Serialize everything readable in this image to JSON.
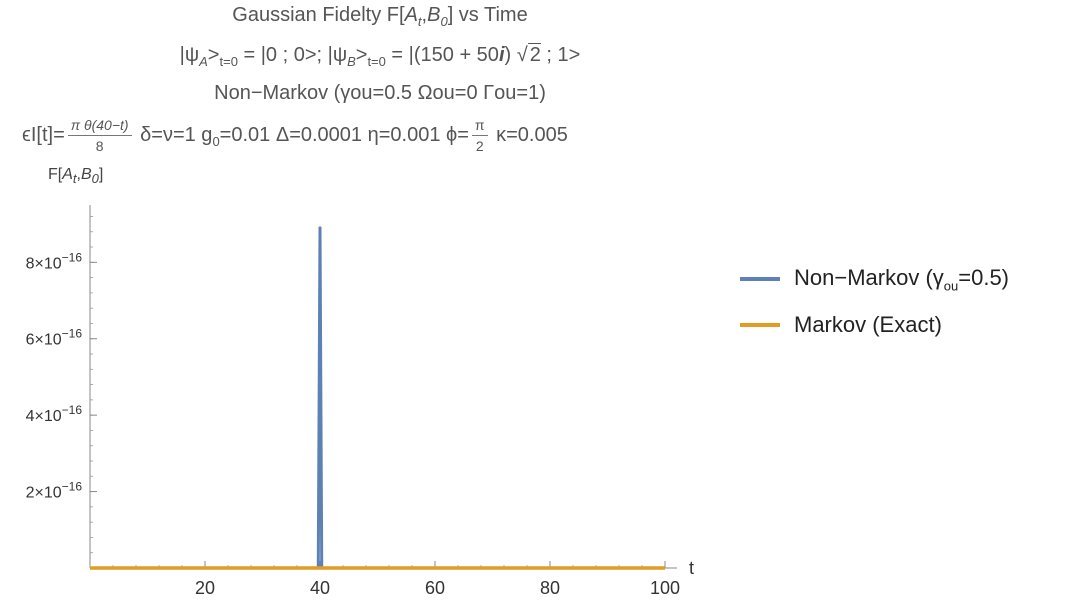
{
  "header": {
    "line1_prefix": "Gaussian Fidelty F[",
    "line1_suffix": "] vs Time",
    "line2_a": "|ψ",
    "line2_b": "A",
    "line2_c": ">",
    "line2_d": "t=0",
    "line2_e": " = |0 ; 0>; |ψ",
    "line2_f": "B",
    "line2_g": ">",
    "line2_h": "t=0",
    "line2_i": " = |(150 + 50",
    "line2_j": "i",
    "line2_k": ") √",
    "line2_l": "2",
    "line2_m": "  ; 1>",
    "line3": "Non−Markov (γou=0.5  Ωou=0 Γou=1)",
    "line4_a": "ϵI[t]=",
    "line4_num": "π θ(40−t)",
    "line4_den": "8",
    "line4_b": " δ=ν=1 g",
    "line4_b_sub": "0",
    "line4_c": "=0.01 Δ=0.0001 η=0.001 ϕ=",
    "line4_num2": "π",
    "line4_den2": "2",
    "line4_d": " κ=0.005"
  },
  "chart_data": {
    "type": "line",
    "xlabel": "t",
    "ylabel": "F[A_t,B_0]",
    "xlim": [
      0,
      100
    ],
    "ylim": [
      0,
      9.5e-16
    ],
    "x_ticks": [
      20,
      40,
      60,
      80,
      100
    ],
    "x_tick_labels": [
      "20",
      "40",
      "60",
      "80",
      "100"
    ],
    "y_ticks": [
      2e-16,
      4e-16,
      6e-16,
      8e-16
    ],
    "y_tick_labels": [
      "2×10",
      "4×10",
      "6×10",
      "8×10"
    ],
    "y_tick_exponent": "−16",
    "legend_placement": "right",
    "series": [
      {
        "name": "Non−Markov (γou=0.5)",
        "name_prefix": "Non−Markov (γ",
        "name_sub": "ou",
        "name_suffix": "=0.5)",
        "color": "#5e81b5",
        "x": [
          0,
          39.7,
          40.0,
          40.3,
          100
        ],
        "y": [
          0,
          0,
          8.9e-16,
          0,
          0
        ]
      },
      {
        "name": "Markov (Exact)",
        "color": "#e19c24",
        "x": [
          0,
          100
        ],
        "y": [
          0,
          0
        ]
      }
    ],
    "axis_label_ylabel_text": "F[",
    "axis_label_ylabel_mid": ",",
    "axis_label_ylabel_end": "]"
  }
}
